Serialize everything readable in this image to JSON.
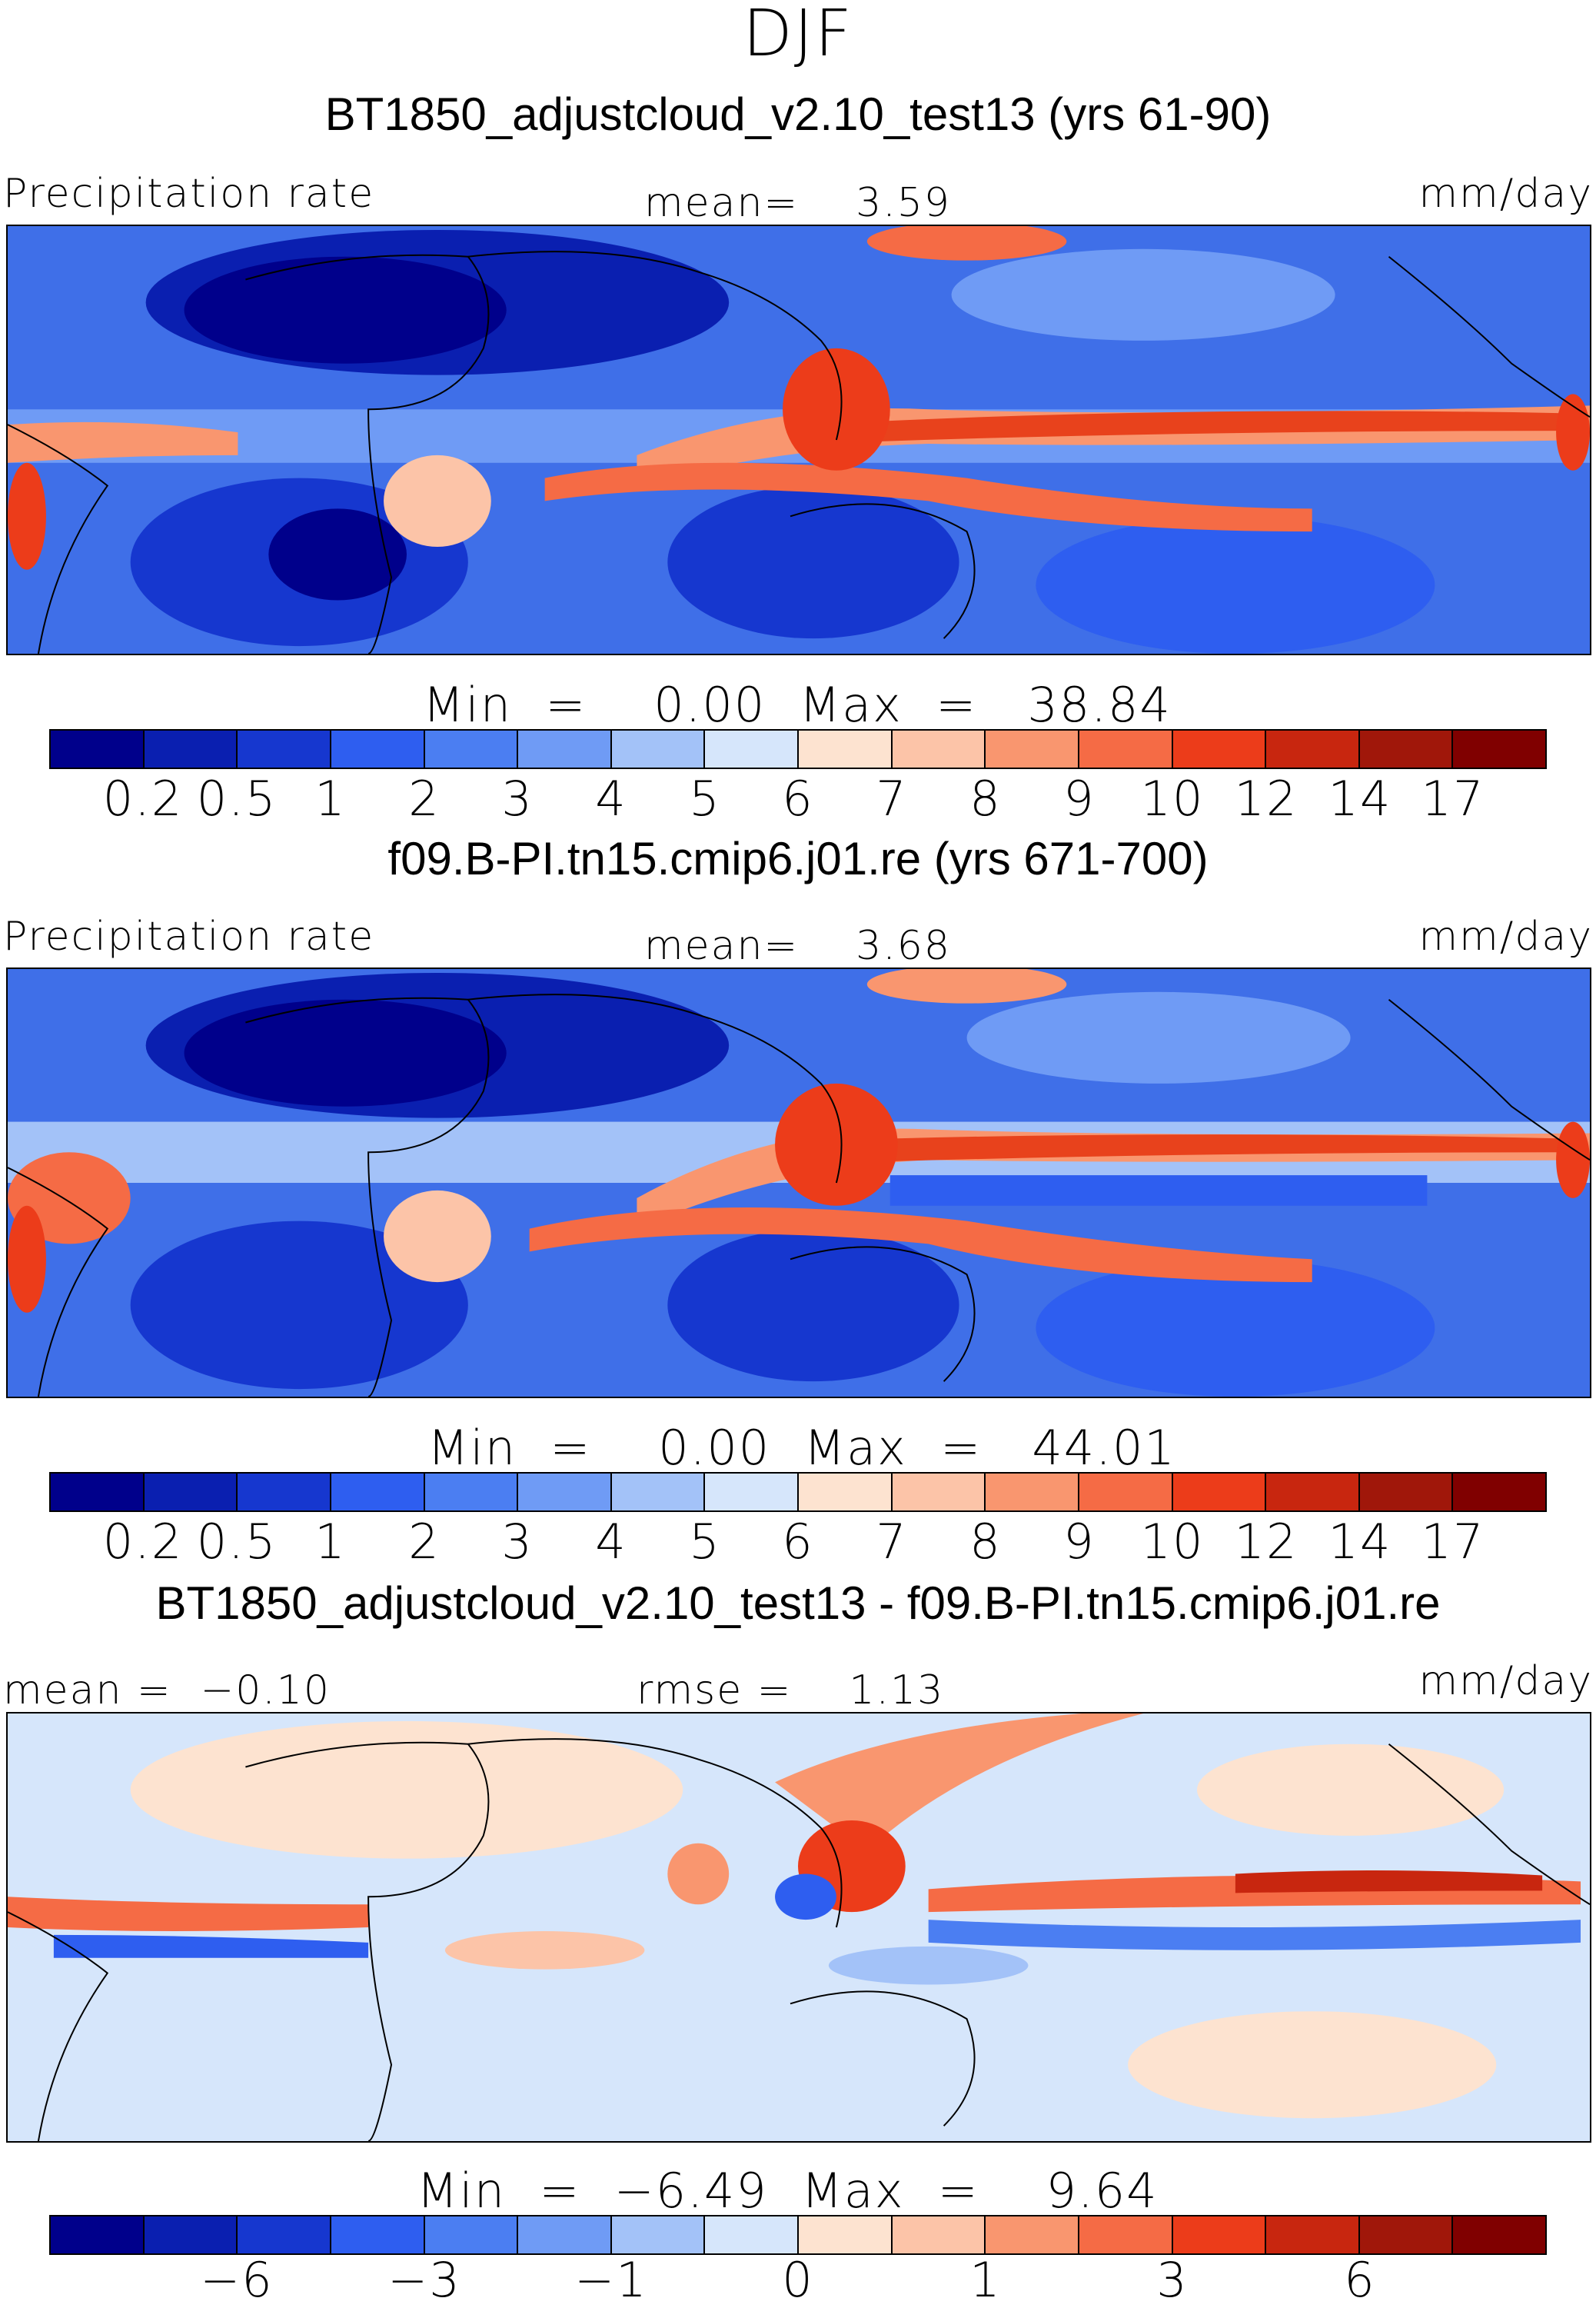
{
  "season": "DJF",
  "panels": [
    {
      "title": "BT1850_adjustcloud_v2.10_test13 (yrs 61-90)",
      "left_label": "Precipitation rate",
      "center_label": "mean=    3.59",
      "right_label": "mm/day",
      "minmax": "Min  =    0.00  Max  =   38.84",
      "ticks": [
        "0.2",
        "0.5",
        "1",
        "2",
        "3",
        "4",
        "5",
        "6",
        "7",
        "8",
        "9",
        "10",
        "12",
        "14",
        "17"
      ]
    },
    {
      "title": "f09.B-PI.tn15.cmip6.j01.re (yrs 671-700)",
      "left_label": "Precipitation rate",
      "center_label": "mean=    3.68",
      "right_label": "mm/day",
      "minmax": "Min  =    0.00  Max  =   44.01",
      "ticks": [
        "0.2",
        "0.5",
        "1",
        "2",
        "3",
        "4",
        "5",
        "6",
        "7",
        "8",
        "9",
        "10",
        "12",
        "14",
        "17"
      ]
    },
    {
      "title": "BT1850_adjustcloud_v2.10_test13 - f09.B-PI.tn15.cmip6.j01.re",
      "left_label": "mean =  −0.10",
      "center_label": "rmse =    1.13",
      "right_label": "mm/day",
      "minmax": "Min  =  −6.49  Max  =    9.64",
      "ticks": [
        "−6",
        "−3",
        "−1",
        "0",
        "1",
        "3",
        "6"
      ]
    }
  ],
  "colorbar_colors": [
    "#00008b",
    "#0a1fb0",
    "#1637cf",
    "#2e5ef0",
    "#4b7ef2",
    "#6f9bf5",
    "#a3c2f8",
    "#d6e6fb",
    "#fde3d0",
    "#fcc4a8",
    "#f9966f",
    "#f56b45",
    "#ec3c1a",
    "#c8260f",
    "#a0170a",
    "#800000"
  ],
  "colors": {
    "land_line": "#000000",
    "dry": "#0a1fb0",
    "wet": "#e8421c"
  }
}
